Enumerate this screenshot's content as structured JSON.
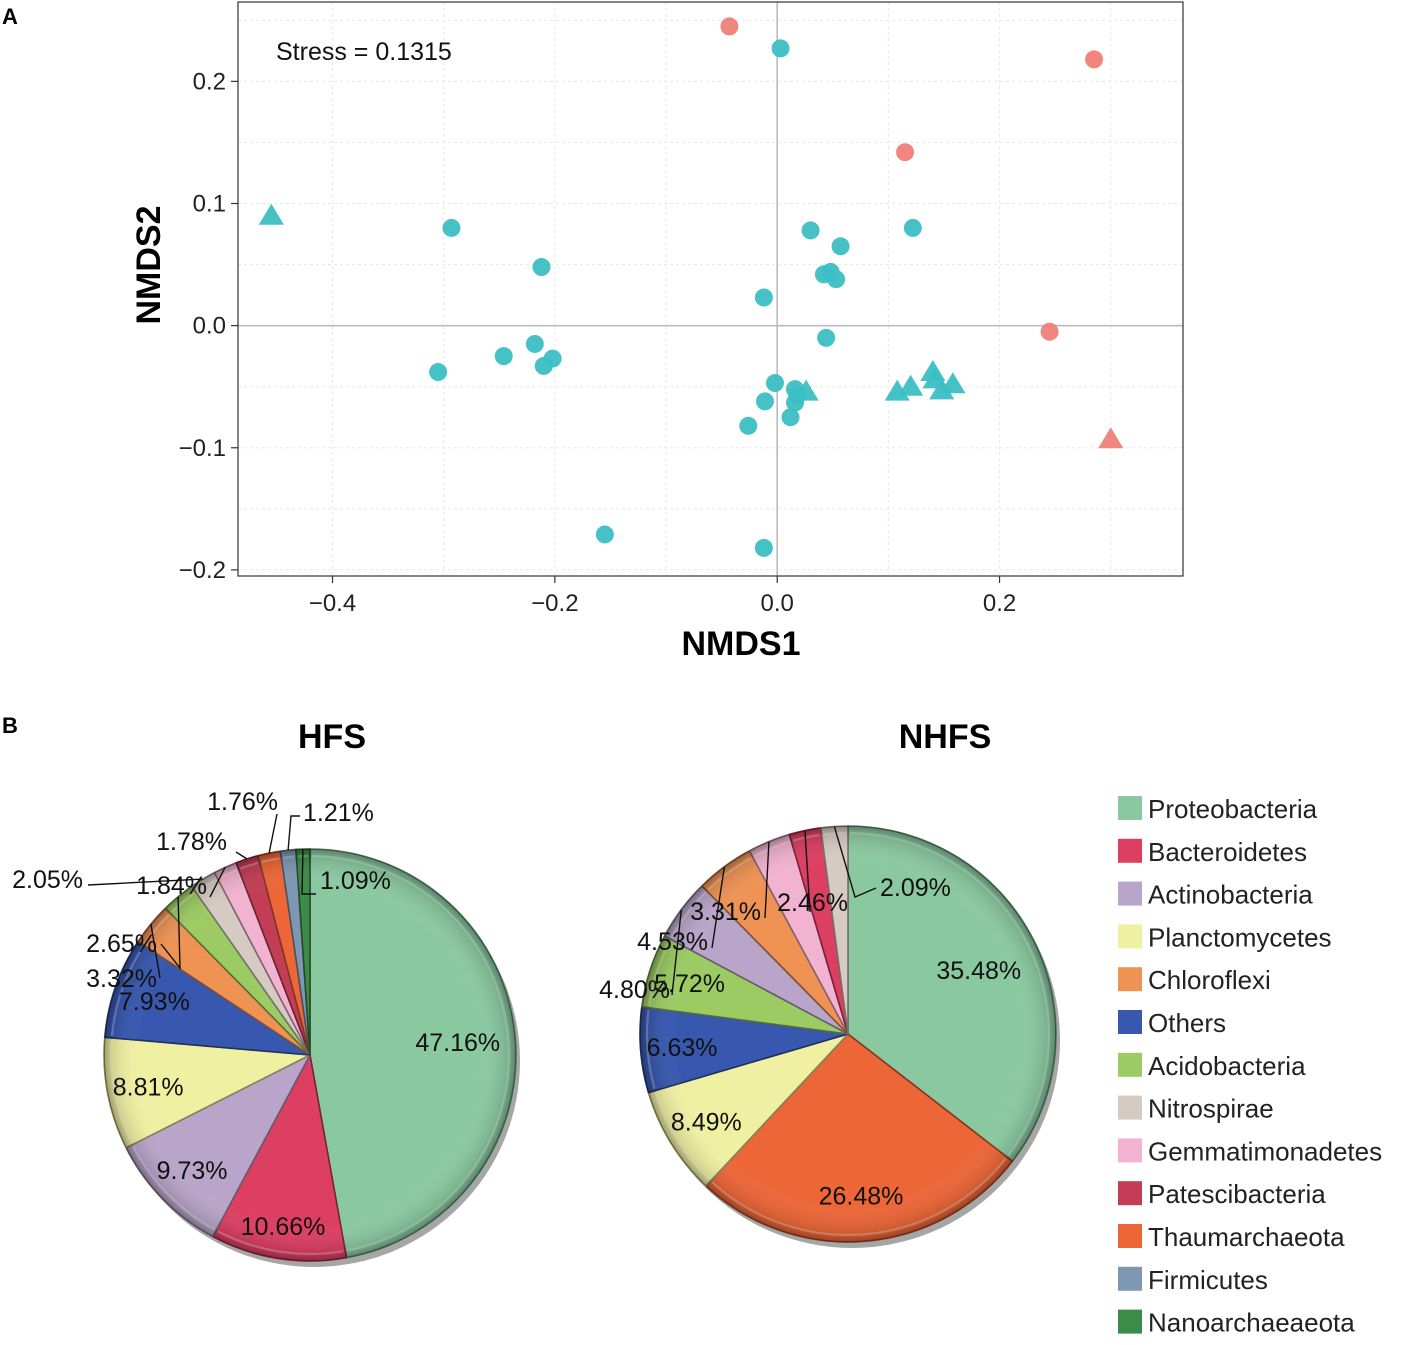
{
  "panels": {
    "a": "A",
    "b": "B"
  },
  "chart_data": [
    {
      "type": "scatter",
      "stress_label": "Stress = 0.1315",
      "xlabel": "NMDS1",
      "ylabel": "NMDS2",
      "xlim": [
        -0.485,
        0.365
      ],
      "ylim": [
        -0.205,
        0.265
      ],
      "xticks": [
        -0.4,
        -0.2,
        0.0,
        0.2
      ],
      "xtick_labels": [
        "−0.4",
        "−0.2",
        "0.0",
        "0.2"
      ],
      "yticks": [
        -0.2,
        -0.1,
        0.0,
        0.1,
        0.2
      ],
      "ytick_labels": [
        "−0.2",
        "−0.1",
        "0.0",
        "0.1",
        "0.2"
      ],
      "grid": true,
      "colors": {
        "teal": "#3cbfc4",
        "salmon": "#f08077",
        "grid": "#e8e8e8",
        "zero": "#bbbbbb"
      },
      "points": [
        {
          "x": -0.043,
          "y": 0.245,
          "color": "salmon",
          "shape": "circle"
        },
        {
          "x": 0.285,
          "y": 0.218,
          "color": "salmon",
          "shape": "circle"
        },
        {
          "x": 0.115,
          "y": 0.142,
          "color": "salmon",
          "shape": "circle"
        },
        {
          "x": 0.245,
          "y": -0.005,
          "color": "salmon",
          "shape": "circle"
        },
        {
          "x": 0.3,
          "y": -0.093,
          "color": "salmon",
          "shape": "triangle"
        },
        {
          "x": 0.003,
          "y": 0.227,
          "color": "teal",
          "shape": "circle"
        },
        {
          "x": -0.293,
          "y": 0.08,
          "color": "teal",
          "shape": "circle"
        },
        {
          "x": -0.212,
          "y": 0.048,
          "color": "teal",
          "shape": "circle"
        },
        {
          "x": -0.012,
          "y": 0.023,
          "color": "teal",
          "shape": "circle"
        },
        {
          "x": 0.03,
          "y": 0.078,
          "color": "teal",
          "shape": "circle"
        },
        {
          "x": 0.057,
          "y": 0.065,
          "color": "teal",
          "shape": "circle"
        },
        {
          "x": 0.122,
          "y": 0.08,
          "color": "teal",
          "shape": "circle"
        },
        {
          "x": 0.042,
          "y": 0.042,
          "color": "teal",
          "shape": "circle"
        },
        {
          "x": 0.048,
          "y": 0.044,
          "color": "teal",
          "shape": "circle"
        },
        {
          "x": 0.053,
          "y": 0.038,
          "color": "teal",
          "shape": "circle"
        },
        {
          "x": 0.044,
          "y": -0.01,
          "color": "teal",
          "shape": "circle"
        },
        {
          "x": -0.305,
          "y": -0.038,
          "color": "teal",
          "shape": "circle"
        },
        {
          "x": -0.246,
          "y": -0.025,
          "color": "teal",
          "shape": "circle"
        },
        {
          "x": -0.218,
          "y": -0.015,
          "color": "teal",
          "shape": "circle"
        },
        {
          "x": -0.21,
          "y": -0.033,
          "color": "teal",
          "shape": "circle"
        },
        {
          "x": -0.202,
          "y": -0.027,
          "color": "teal",
          "shape": "circle"
        },
        {
          "x": -0.002,
          "y": -0.047,
          "color": "teal",
          "shape": "circle"
        },
        {
          "x": 0.016,
          "y": -0.052,
          "color": "teal",
          "shape": "circle"
        },
        {
          "x": 0.018,
          "y": -0.057,
          "color": "teal",
          "shape": "circle"
        },
        {
          "x": -0.011,
          "y": -0.062,
          "color": "teal",
          "shape": "circle"
        },
        {
          "x": 0.016,
          "y": -0.063,
          "color": "teal",
          "shape": "circle"
        },
        {
          "x": 0.012,
          "y": -0.075,
          "color": "teal",
          "shape": "circle"
        },
        {
          "x": -0.026,
          "y": -0.082,
          "color": "teal",
          "shape": "circle"
        },
        {
          "x": -0.155,
          "y": -0.171,
          "color": "teal",
          "shape": "circle"
        },
        {
          "x": -0.012,
          "y": -0.182,
          "color": "teal",
          "shape": "circle"
        },
        {
          "x": -0.455,
          "y": 0.09,
          "color": "teal",
          "shape": "triangle"
        },
        {
          "x": 0.026,
          "y": -0.054,
          "color": "teal",
          "shape": "triangle"
        },
        {
          "x": 0.108,
          "y": -0.054,
          "color": "teal",
          "shape": "triangle"
        },
        {
          "x": 0.12,
          "y": -0.05,
          "color": "teal",
          "shape": "triangle"
        },
        {
          "x": 0.14,
          "y": -0.038,
          "color": "teal",
          "shape": "triangle"
        },
        {
          "x": 0.142,
          "y": -0.044,
          "color": "teal",
          "shape": "triangle"
        },
        {
          "x": 0.148,
          "y": -0.053,
          "color": "teal",
          "shape": "triangle"
        },
        {
          "x": 0.158,
          "y": -0.048,
          "color": "teal",
          "shape": "triangle"
        }
      ]
    },
    {
      "type": "pie",
      "title": "HFS",
      "slices": [
        {
          "label": "Proteobacteria",
          "value": 47.16,
          "text": "47.16%"
        },
        {
          "label": "Bacteroidetes",
          "value": 10.66,
          "text": "10.66%"
        },
        {
          "label": "Actinobacteria",
          "value": 9.73,
          "text": "9.73%"
        },
        {
          "label": "Planctomycetes",
          "value": 8.81,
          "text": "8.81%"
        },
        {
          "label": "Others",
          "value": 7.93,
          "text": "7.93%"
        },
        {
          "label": "Chloroflexi",
          "value": 3.32,
          "text": "3.32%"
        },
        {
          "label": "Acidobacteria",
          "value": 2.65,
          "text": "2.65%"
        },
        {
          "label": "Nitrospirae",
          "value": 2.05,
          "text": "2.05%"
        },
        {
          "label": "Gemmatimonadetes",
          "value": 1.84,
          "text": "1.84%"
        },
        {
          "label": "Patescibacteria",
          "value": 1.78,
          "text": "1.78%"
        },
        {
          "label": "Thaumarchaeota",
          "value": 1.76,
          "text": "1.76%"
        },
        {
          "label": "Firmicutes",
          "value": 1.21,
          "text": "1.21%"
        },
        {
          "label": "Nanoarchaeaeota",
          "value": 1.09,
          "text": "1.09%"
        }
      ]
    },
    {
      "type": "pie",
      "title": "NHFS",
      "slices": [
        {
          "label": "Proteobacteria",
          "value": 35.48,
          "text": "35.48%"
        },
        {
          "label": "Thaumarchaeota",
          "value": 26.48,
          "text": "26.48%"
        },
        {
          "label": "Planctomycetes",
          "value": 8.49,
          "text": "8.49%"
        },
        {
          "label": "Others",
          "value": 6.63,
          "text": "6.63%"
        },
        {
          "label": "Acidobacteria",
          "value": 5.72,
          "text": "5.72%"
        },
        {
          "label": "Actinobacteria",
          "value": 4.8,
          "text": "4.80%"
        },
        {
          "label": "Chloroflexi",
          "value": 4.53,
          "text": "4.53%"
        },
        {
          "label": "Gemmatimonadetes",
          "value": 3.31,
          "text": "3.31%"
        },
        {
          "label": "Bacteroidetes",
          "value": 2.46,
          "text": "2.46%"
        },
        {
          "label": "Nitrospirae",
          "value": 2.09,
          "text": "2.09%"
        }
      ]
    }
  ],
  "legend": [
    {
      "label": "Proteobacteria",
      "color": "#8ac9a0"
    },
    {
      "label": "Bacteroidetes",
      "color": "#dc3f62"
    },
    {
      "label": "Actinobacteria",
      "color": "#b9a5c9"
    },
    {
      "label": "Planctomycetes",
      "color": "#f0f0a3"
    },
    {
      "label": "Chloroflexi",
      "color": "#ef9355"
    },
    {
      "label": "Others",
      "color": "#3858b0"
    },
    {
      "label": "Acidobacteria",
      "color": "#9ccb63"
    },
    {
      "label": "Nitrospirae",
      "color": "#d6cbc3"
    },
    {
      "label": "Gemmatimonadetes",
      "color": "#f1b3cf"
    },
    {
      "label": "Patescibacteria",
      "color": "#c23d55"
    },
    {
      "label": "Thaumarchaeota",
      "color": "#ec6637"
    },
    {
      "label": "Firmicutes",
      "color": "#7e97b3"
    },
    {
      "label": "Nanoarchaeaeota",
      "color": "#3e8a48"
    }
  ]
}
